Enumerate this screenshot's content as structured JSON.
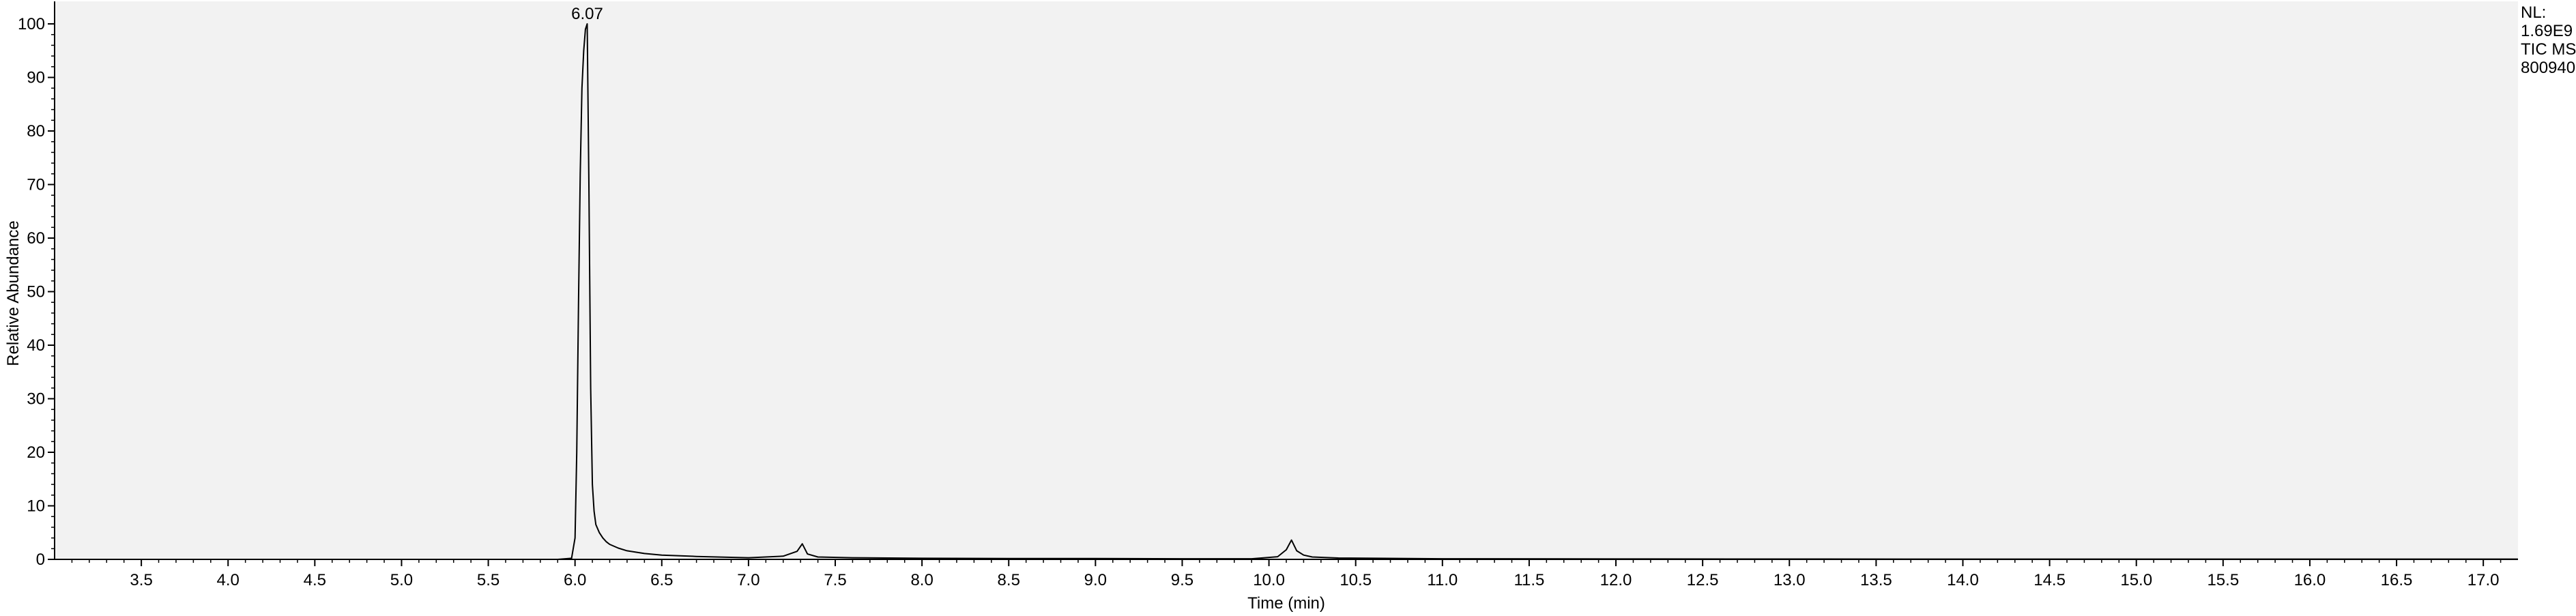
{
  "chart_data": {
    "type": "line",
    "xlabel": "Time (min)",
    "ylabel": "Relative Abundance",
    "xlim": [
      3.0,
      17.2
    ],
    "ylim": [
      0,
      100
    ],
    "x_ticks": [
      "3.5",
      "4.0",
      "4.5",
      "5.0",
      "5.5",
      "6.0",
      "6.5",
      "7.0",
      "7.5",
      "8.0",
      "8.5",
      "9.0",
      "9.5",
      "10.0",
      "10.5",
      "11.0",
      "11.5",
      "12.0",
      "12.5",
      "13.0",
      "13.5",
      "14.0",
      "14.5",
      "15.0",
      "15.5",
      "16.0",
      "16.5",
      "17.0"
    ],
    "y_ticks": [
      "0",
      "10",
      "20",
      "30",
      "40",
      "50",
      "60",
      "70",
      "80",
      "90",
      "100"
    ],
    "grid": false,
    "background_color": "#f2f2f2",
    "line_color": "#000000",
    "annotations": [
      {
        "x": 6.07,
        "y": 100,
        "text": "6.07"
      }
    ],
    "info_box": [
      "NL:",
      "1.69E9",
      "TIC  MS",
      "800940"
    ],
    "series": [
      {
        "x": [
          3.0,
          5.9,
          5.98,
          6.0,
          6.01,
          6.02,
          6.03,
          6.04,
          6.05,
          6.06,
          6.07,
          6.08,
          6.09,
          6.1,
          6.11,
          6.12,
          6.14,
          6.16,
          6.18,
          6.2,
          6.25,
          6.3,
          6.4,
          6.5,
          6.7,
          7.0,
          7.2,
          7.28,
          7.31,
          7.34,
          7.4,
          7.6,
          8.0,
          8.5,
          9.0,
          9.5,
          9.9,
          10.05,
          10.1,
          10.13,
          10.16,
          10.2,
          10.25,
          10.4,
          11.0,
          12.0,
          13.0,
          14.0,
          15.0,
          16.0,
          17.2
        ],
        "y": [
          0,
          0,
          0.2,
          4,
          20,
          48,
          72,
          88,
          95,
          99,
          100,
          70,
          32,
          14,
          9,
          6.5,
          5,
          4,
          3.3,
          2.8,
          2.1,
          1.6,
          1.1,
          0.8,
          0.55,
          0.3,
          0.6,
          1.5,
          2.9,
          1.0,
          0.45,
          0.3,
          0.2,
          0.15,
          0.15,
          0.12,
          0.12,
          0.5,
          1.8,
          3.6,
          1.6,
          0.8,
          0.45,
          0.25,
          0.12,
          0.08,
          0.06,
          0.05,
          0.05,
          0.05,
          0.05
        ]
      }
    ]
  }
}
